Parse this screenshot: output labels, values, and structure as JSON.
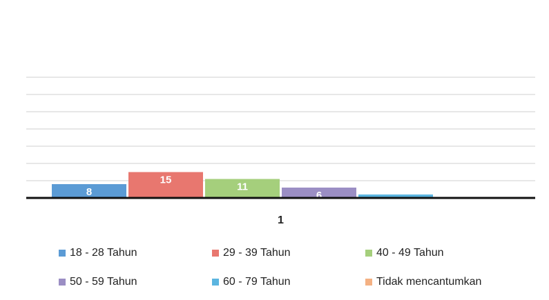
{
  "chart_data": {
    "type": "bar",
    "categories": [
      "1"
    ],
    "series": [
      {
        "name": "18 - 28 Tahun",
        "color": "#5b9bd5",
        "values": [
          8
        ]
      },
      {
        "name": "29 - 39 Tahun",
        "color": "#e8776f",
        "values": [
          15
        ]
      },
      {
        "name": "40 - 49 Tahun",
        "color": "#a5cf7c",
        "values": [
          11
        ]
      },
      {
        "name": "50 - 59 Tahun",
        "color": "#9b8ec4",
        "values": [
          6
        ]
      },
      {
        "name": "60 - 79 Tahun",
        "color": "#5bb5e0",
        "values": [
          2
        ]
      },
      {
        "name": "Tidak mencantumkan",
        "color": "#f4b183",
        "values": [
          0
        ]
      }
    ],
    "ylim": [
      0,
      70
    ],
    "yticks": [
      0,
      10,
      20,
      30,
      40,
      50,
      60,
      70
    ],
    "grid": true,
    "legend": "bottom"
  }
}
